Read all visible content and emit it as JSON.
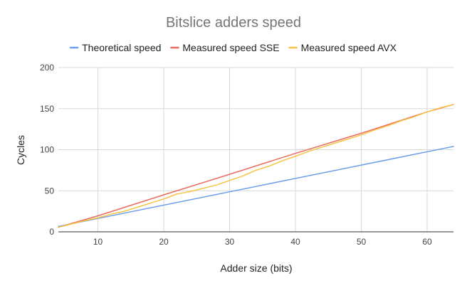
{
  "chart_data": {
    "type": "line",
    "title": "Bitslice adders speed",
    "xlabel": "Adder size (bits)",
    "ylabel": "Cycles",
    "xlim": [
      4,
      64
    ],
    "ylim": [
      0,
      200
    ],
    "x_ticks": [
      10,
      20,
      30,
      40,
      50,
      60
    ],
    "y_ticks": [
      0,
      50,
      100,
      150,
      200
    ],
    "grid": true,
    "legend_position": "top",
    "series": [
      {
        "name": "Theoretical speed",
        "color": "#6d9eeb",
        "x": [
          4,
          64
        ],
        "values": [
          6.5,
          104
        ]
      },
      {
        "name": "Measured speed SSE",
        "color": "#ea6b5f",
        "x": [
          4,
          10,
          20,
          30,
          40,
          50,
          60,
          64
        ],
        "values": [
          5.5,
          19.5,
          45,
          70,
          95.5,
          120,
          146,
          155
        ]
      },
      {
        "name": "Measured speed AVX",
        "color": "#f6c344",
        "x": [
          4,
          6,
          8,
          10,
          12,
          14,
          16,
          18,
          20,
          22,
          24,
          26,
          28,
          30,
          32,
          34,
          36,
          38,
          40,
          42,
          44,
          46,
          48,
          50,
          52,
          54,
          56,
          58,
          60,
          62,
          64
        ],
        "values": [
          5.5,
          9.5,
          13.5,
          17,
          21.5,
          25,
          30,
          35,
          40,
          46,
          49,
          53,
          57,
          62.5,
          68,
          75,
          80,
          86.5,
          92,
          98,
          103,
          108,
          113,
          118,
          124,
          129,
          135,
          140,
          146,
          151,
          155
        ]
      }
    ]
  }
}
